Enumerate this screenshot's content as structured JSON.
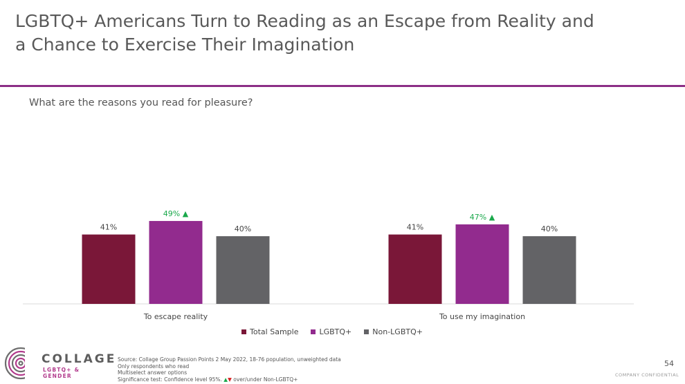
{
  "title": {
    "line1": "LGBTQ+ Americans Turn to Reading as an Escape from Reality and",
    "line2": "a Chance to Exercise Their Imagination"
  },
  "question": "What are the reasons you read for pleasure?",
  "chart_data": {
    "type": "bar",
    "categories": [
      "To escape reality",
      "To use my imagination"
    ],
    "series": [
      {
        "name": "Total Sample",
        "color": "#7a1738",
        "values": [
          41,
          41
        ],
        "labels": [
          "41%",
          "41%"
        ],
        "significant": [
          false,
          false
        ]
      },
      {
        "name": "LGBTQ+",
        "color": "#922b8e",
        "values": [
          49,
          47
        ],
        "labels": [
          "49% ▲",
          "47% ▲"
        ],
        "significant": [
          true,
          true
        ]
      },
      {
        "name": "Non-LGBTQ+",
        "color": "#636366",
        "values": [
          40,
          40
        ],
        "labels": [
          "40%",
          "40%"
        ],
        "significant": [
          false,
          false
        ]
      }
    ],
    "legend_position": "bottom",
    "grid": false,
    "ylim": [
      0,
      60
    ],
    "sig_color": "#1aa84b"
  },
  "logo": {
    "word": "COLLAGE",
    "sub": "LGBTQ+ & GENDER"
  },
  "source": {
    "line1": "Source: Collage Group Passion Points 2 May 2022, 18-76 population, unweighted data",
    "line2": "Only respondents who read",
    "line3": "Multiselect answer options",
    "line4_prefix": "Significance test: Confidence level 95%.",
    "line4_up": "▲",
    "line4_down": "▼",
    "line4_suffix": " over/under Non-LGBTQ+"
  },
  "page_number": "54",
  "confidential": "COMPANY CONFIDENTIAL"
}
